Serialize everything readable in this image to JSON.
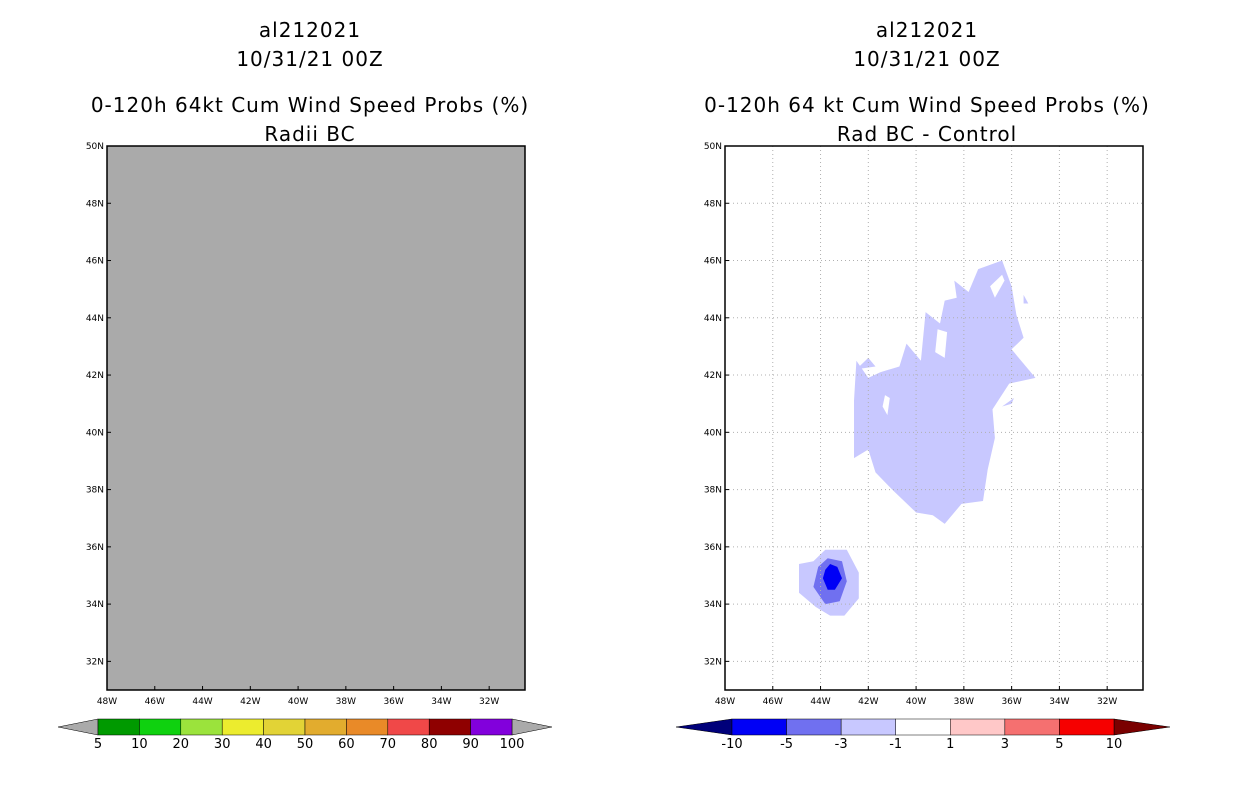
{
  "chart_data": [
    {
      "type": "heatmap",
      "storm_id": "al212021",
      "date": "10/31/21 00Z",
      "title": "0-120h 64kt Cum Wind Speed Probs (%)",
      "subtitle": "Radii BC",
      "xlim": [
        -48,
        -30.5
      ],
      "ylim": [
        31,
        50
      ],
      "xticks": [
        -48,
        -46,
        -44,
        -42,
        -40,
        -38,
        -36,
        -34,
        -32
      ],
      "xtick_labels": [
        "48W",
        "46W",
        "44W",
        "42W",
        "40W",
        "38W",
        "36W",
        "34W",
        "32W"
      ],
      "yticks": [
        32,
        34,
        36,
        38,
        40,
        42,
        44,
        46,
        48,
        50
      ],
      "ytick_labels": [
        "32N",
        "34N",
        "36N",
        "38N",
        "40N",
        "42N",
        "44N",
        "46N",
        "48N",
        "50N"
      ],
      "grid": false,
      "field": "uniform gray (all values below 5%)",
      "fill_color": "#aaaaaa",
      "colorbar": {
        "labels": [
          "5",
          "10",
          "20",
          "30",
          "40",
          "50",
          "60",
          "70",
          "80",
          "90",
          "100"
        ],
        "colors": [
          "#009a00",
          "#0fd10f",
          "#9be33c",
          "#ecec2e",
          "#e2d336",
          "#e2ac2e",
          "#e98a28",
          "#f04848",
          "#8f0000",
          "#8200dc"
        ],
        "end_colors": [
          "#aaaaaa",
          "#aaaaaa"
        ]
      }
    },
    {
      "type": "heatmap",
      "storm_id": "al212021",
      "date": "10/31/21 00Z",
      "title": "0-120h 64 kt Cum Wind Speed Probs (%)",
      "subtitle": "Rad BC - Control",
      "xlim": [
        -48,
        -30.5
      ],
      "ylim": [
        31,
        50
      ],
      "xticks": [
        -48,
        -46,
        -44,
        -42,
        -40,
        -38,
        -36,
        -34,
        -32
      ],
      "xtick_labels": [
        "48W",
        "46W",
        "44W",
        "42W",
        "40W",
        "38W",
        "36W",
        "34W",
        "32W"
      ],
      "yticks": [
        32,
        34,
        36,
        38,
        40,
        42,
        44,
        46,
        48,
        50
      ],
      "ytick_labels": [
        "32N",
        "34N",
        "36N",
        "38N",
        "40N",
        "42N",
        "44N",
        "46N",
        "48N",
        "50N"
      ],
      "grid": true,
      "regions": [
        {
          "level": "-3 to -1",
          "color": "#c8c8ff",
          "points": [
            [
              -42.5,
              42.5
            ],
            [
              -42,
              41.9
            ],
            [
              -41.5,
              42.1
            ],
            [
              -40.7,
              42.3
            ],
            [
              -40.4,
              43.1
            ],
            [
              -39.8,
              42.5
            ],
            [
              -39.6,
              44.2
            ],
            [
              -39,
              43.8
            ],
            [
              -38.8,
              44.6
            ],
            [
              -38.3,
              44.7
            ],
            [
              -38.4,
              45.3
            ],
            [
              -37.8,
              44.9
            ],
            [
              -37.4,
              45.7
            ],
            [
              -36.4,
              46
            ],
            [
              -36,
              45.1
            ],
            [
              -35.8,
              44.1
            ],
            [
              -35.5,
              43.3
            ],
            [
              -36,
              42.9
            ],
            [
              -35,
              41.9
            ],
            [
              -36.1,
              41.7
            ],
            [
              -36.8,
              40.8
            ],
            [
              -36.7,
              39.8
            ],
            [
              -37,
              38.7
            ],
            [
              -37.2,
              37.6
            ],
            [
              -38.1,
              37.5
            ],
            [
              -38.8,
              36.8
            ],
            [
              -39.3,
              37.1
            ],
            [
              -40,
              37.2
            ],
            [
              -41,
              38
            ],
            [
              -41.7,
              38.6
            ],
            [
              -42,
              39.4
            ],
            [
              -42.6,
              39.1
            ],
            [
              -42.6,
              41.1
            ]
          ]
        },
        {
          "level": "-3 to -1",
          "color": "#c8c8ff",
          "points": [
            [
              -44.3,
              35.5
            ],
            [
              -43.8,
              35.9
            ],
            [
              -42.9,
              35.9
            ],
            [
              -42.4,
              35.1
            ],
            [
              -42.4,
              34.2
            ],
            [
              -43,
              33.6
            ],
            [
              -43.6,
              33.6
            ],
            [
              -44.2,
              33.9
            ],
            [
              -44.9,
              34.4
            ],
            [
              -44.9,
              35.4
            ]
          ]
        },
        {
          "level": "-5 to -3",
          "color": "#7070f0",
          "points": [
            [
              -43.7,
              35.6
            ],
            [
              -43.1,
              35.5
            ],
            [
              -42.9,
              34.8
            ],
            [
              -43.2,
              34.1
            ],
            [
              -43.8,
              34
            ],
            [
              -44.3,
              34.6
            ],
            [
              -44.1,
              35.3
            ]
          ]
        },
        {
          "level": "-10 to -5",
          "color": "#0000f6",
          "points": [
            [
              -43.6,
              35.4
            ],
            [
              -43.3,
              35.3
            ],
            [
              -43.1,
              34.9
            ],
            [
              -43.4,
              34.5
            ],
            [
              -43.7,
              34.5
            ],
            [
              -43.9,
              34.9
            ],
            [
              -43.8,
              35.2
            ]
          ]
        },
        {
          "level": "-1 to 1",
          "color": "#ffffff",
          "points": [
            [
              -36.9,
              45.1
            ],
            [
              -36.4,
              45.5
            ],
            [
              -36.3,
              45.3
            ],
            [
              -36.7,
              44.7
            ]
          ]
        },
        {
          "level": "-1 to 1",
          "color": "#ffffff",
          "points": [
            [
              -39.1,
              43.6
            ],
            [
              -38.7,
              43.5
            ],
            [
              -38.8,
              42.6
            ],
            [
              -39.2,
              42.8
            ]
          ]
        },
        {
          "level": "-1 to 1",
          "color": "#ffffff",
          "points": [
            [
              -41.3,
              41.3
            ],
            [
              -41.1,
              41.2
            ],
            [
              -41.2,
              40.6
            ],
            [
              -41.4,
              40.9
            ]
          ]
        },
        {
          "level": "-3 to -1",
          "color": "#c8c8ff",
          "points": [
            [
              -35.5,
              44.8
            ],
            [
              -35.3,
              44.5
            ],
            [
              -35.5,
              44.5
            ]
          ]
        },
        {
          "level": "-3 to -1",
          "color": "#c8c8ff",
          "points": [
            [
              -36.1,
              44.2
            ],
            [
              -35.9,
              44
            ],
            [
              -36.1,
              44
            ]
          ]
        },
        {
          "level": "-3 to -1",
          "color": "#c8c8ff",
          "points": [
            [
              -35.9,
              41.2
            ],
            [
              -36,
              41
            ],
            [
              -36.4,
              40.9
            ]
          ]
        },
        {
          "level": "-3 to -1",
          "color": "#c8c8ff",
          "points": [
            [
              -42.5,
              42.2
            ],
            [
              -42,
              42.6
            ],
            [
              -41.7,
              42.3
            ]
          ]
        }
      ],
      "colorbar": {
        "labels": [
          "-10",
          "-5",
          "-3",
          "-1",
          "1",
          "3",
          "5",
          "10"
        ],
        "colors": [
          "#0000f6",
          "#7070f0",
          "#c8c8ff",
          "#ffffff",
          "#ffc8c8",
          "#f57070",
          "#f60000"
        ],
        "end_colors": [
          "#00007a",
          "#7a0000"
        ]
      }
    }
  ]
}
